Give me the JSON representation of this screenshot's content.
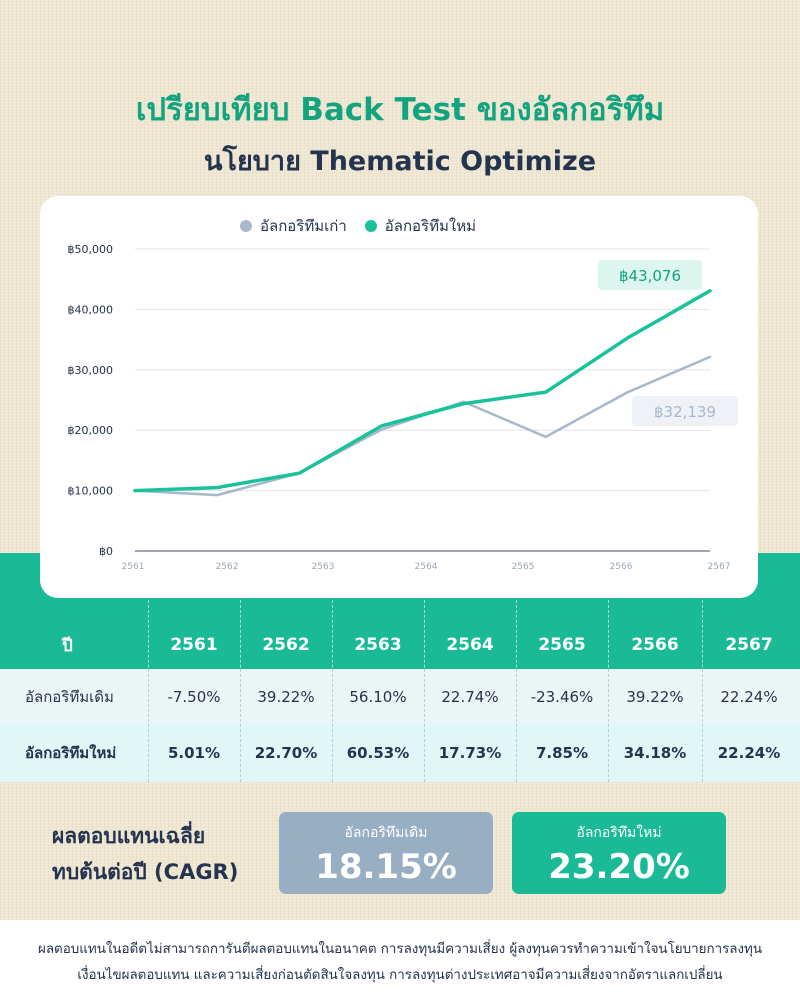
{
  "title_line1": "เปรียบเทียบ Back Test ของอัลกอริทึม",
  "title_line2": "นโยบาย Thematic Optimize",
  "legend": {
    "old": "อัลกอริทึมเก่า",
    "new": "อัลกอริทึมใหม่"
  },
  "colors": {
    "old": "#a6b8ca",
    "new": "#19c29a",
    "band": "#19ba95"
  },
  "chart_data": {
    "type": "line",
    "x": [
      0,
      1,
      2,
      3,
      4,
      5,
      6,
      7
    ],
    "y_tick_labels": [
      "฿0",
      "฿10,000",
      "฿20,000",
      "฿30,000",
      "฿40,000",
      "฿50,000"
    ],
    "y_ticks": [
      0,
      10000,
      20000,
      30000,
      40000,
      50000
    ],
    "ylim": [
      0,
      50000
    ],
    "x_tick_labels": [
      "2561",
      "2562",
      "2563",
      "2564",
      "2565",
      "2566",
      "2567"
    ],
    "grid": true,
    "legend_position": "top-center",
    "series": [
      {
        "name": "อัลกอริทึมเก่า",
        "values": [
          10000,
          9250,
          12880,
          20100,
          24700,
          18900,
          26300,
          32139
        ],
        "end_label": "฿32,139"
      },
      {
        "name": "อัลกอริทึมใหม่",
        "values": [
          10000,
          10500,
          12880,
          20700,
          24400,
          26300,
          35300,
          43076
        ],
        "end_label": "฿43,076"
      }
    ]
  },
  "table": {
    "header_label": "ปี",
    "years": [
      "2561",
      "2562",
      "2563",
      "2564",
      "2565",
      "2566",
      "2567"
    ],
    "rows": [
      {
        "label": "อัลกอริทึมเดิม",
        "values": [
          "-7.50%",
          "39.22%",
          "56.10%",
          "22.74%",
          "-23.46%",
          "39.22%",
          "22.24%"
        ]
      },
      {
        "label": "อัลกอริทึมใหม่",
        "values": [
          "5.01%",
          "22.70%",
          "60.53%",
          "17.73%",
          "7.85%",
          "34.18%",
          "22.24%"
        ]
      }
    ]
  },
  "cagr": {
    "label_line1": "ผลตอบแทนเฉลี่ย",
    "label_line2": "ทบต้นต่อปี (CAGR)",
    "old": {
      "label": "อัลกอริทึมเดิม",
      "value": "18.15%"
    },
    "new": {
      "label": "อัลกอริทึมใหม่",
      "value": "23.20%"
    }
  },
  "disclaimer": {
    "line1": "ผลตอบแทนในอดีตไม่สามารถการันตีผลตอบแทนในอนาคต การลงทุนมีความเสี่ยง ผู้ลงทุนควรทำความเข้าใจนโยบายการลงทุน",
    "line2": "เงื่อนไขผลตอบแทน และความเสี่ยงก่อนตัดสินใจลงทุน การลงทุนต่างประเทศอาจมีความเสี่ยงจากอัตราแลกเปลี่ยน"
  }
}
